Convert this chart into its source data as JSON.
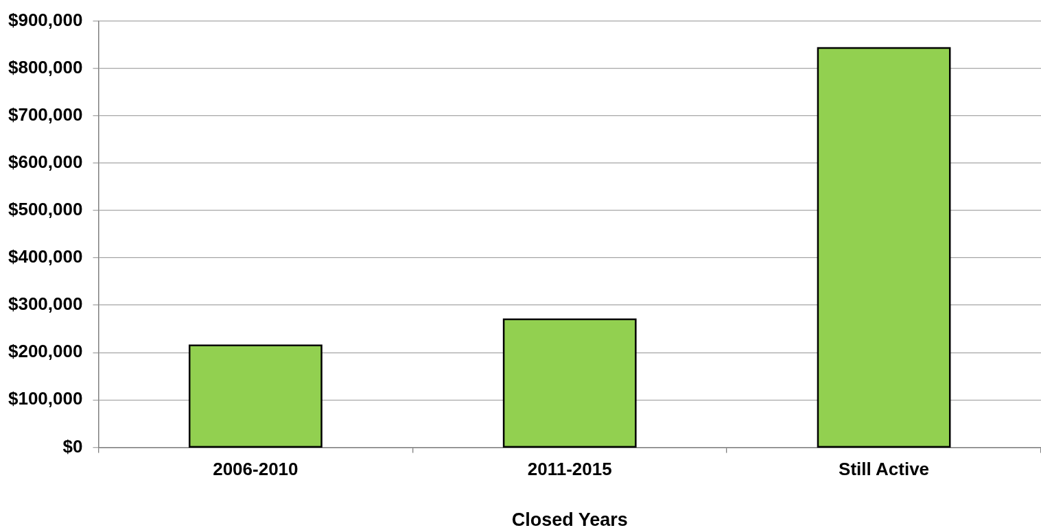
{
  "chart_data": {
    "type": "bar",
    "xlabel": "Closed Years",
    "categories": [
      "2006-2010",
      "2011-2015",
      "Still Active"
    ],
    "values": [
      215000,
      270000,
      843000
    ],
    "color": "#92d050",
    "ylim": [
      0,
      900000
    ],
    "yticks": [
      {
        "value": 0,
        "label": "$0"
      },
      {
        "value": 100000,
        "label": "$100,000"
      },
      {
        "value": 200000,
        "label": "$200,000"
      },
      {
        "value": 300000,
        "label": "$300,000"
      },
      {
        "value": 400000,
        "label": "$400,000"
      },
      {
        "value": 500000,
        "label": "$500,000"
      },
      {
        "value": 600000,
        "label": "$600,000"
      },
      {
        "value": 700000,
        "label": "$700,000"
      },
      {
        "value": 800000,
        "label": "$800,000"
      },
      {
        "value": 900000,
        "label": "$900,000"
      }
    ],
    "grid": "y"
  }
}
